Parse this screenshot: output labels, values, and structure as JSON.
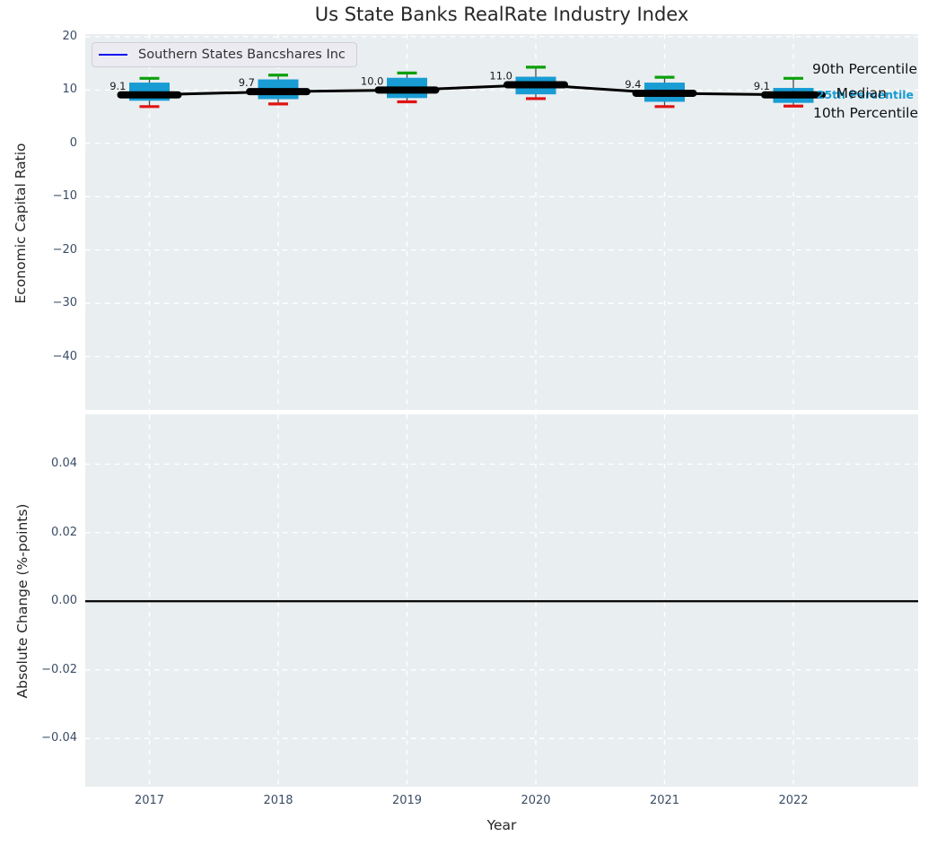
{
  "title": "Us State Banks RealRate Industry Index",
  "legend": {
    "series_label": "Southern States Bancshares Inc"
  },
  "annotations": {
    "p90": "90th Percentile",
    "median": "Median",
    "p25": "25th Percentile",
    "p10": "10th Percentile"
  },
  "axes": {
    "top": {
      "ylabel": "Economic Capital Ratio",
      "ylim": [
        -50.0,
        20.5
      ],
      "yticks": [
        {
          "label": "20",
          "value": 20
        },
        {
          "label": "10",
          "value": 10
        },
        {
          "label": "0",
          "value": 0
        },
        {
          "label": "−10",
          "value": -10
        },
        {
          "label": "−20",
          "value": -20
        },
        {
          "label": "−30",
          "value": -30
        },
        {
          "label": "−40",
          "value": -40
        }
      ]
    },
    "bottom": {
      "ylabel": "Absolute Change (%-points)",
      "ylim": [
        -0.0541,
        0.0545
      ],
      "yticks": [
        {
          "label": "0.04",
          "value": 0.04
        },
        {
          "label": "0.02",
          "value": 0.02
        },
        {
          "label": "0.00",
          "value": 0.0
        },
        {
          "label": "−0.02",
          "value": -0.02
        },
        {
          "label": "−0.04",
          "value": -0.04
        }
      ],
      "zero_line": 0.0
    },
    "xlabel": "Year",
    "xticklabels": [
      "2017",
      "2018",
      "2019",
      "2020",
      "2021",
      "2022"
    ]
  },
  "colors": {
    "box_fill": "#189cd3",
    "p90_cap": "#0aa00a",
    "p10_cap": "#e01212",
    "whisker": "#4a4a4a",
    "median_bar": "#000000",
    "company_line": "#000000",
    "company_marker": "#1414f0",
    "plot_bg": "#e9eef0",
    "grid": "#ffffff",
    "tick_text": "#3b4d66",
    "value_label_text": "#1a1a1a"
  },
  "chart_data": {
    "type": "boxplot+line",
    "x": [
      2017,
      2018,
      2019,
      2020,
      2021,
      2022
    ],
    "series": [
      {
        "name": "Southern States Bancshares Inc",
        "values": [
          9.1,
          9.7,
          10.0,
          11.0,
          9.4,
          9.1
        ]
      },
      {
        "name": "Median",
        "values": [
          9.1,
          9.7,
          10.0,
          11.0,
          9.4,
          9.1
        ]
      }
    ],
    "boxes": [
      {
        "year": "2017",
        "p90": 12.2,
        "q75": 11.4,
        "median": 9.1,
        "q25": 8.0,
        "p10": 6.9,
        "label": "9.1"
      },
      {
        "year": "2018",
        "p90": 12.8,
        "q75": 12.0,
        "median": 9.7,
        "q25": 8.3,
        "p10": 7.4,
        "label": "9.7"
      },
      {
        "year": "2019",
        "p90": 13.2,
        "q75": 12.3,
        "median": 10.0,
        "q25": 8.5,
        "p10": 7.8,
        "label": "10.0"
      },
      {
        "year": "2020",
        "p90": 14.3,
        "q75": 12.5,
        "median": 11.0,
        "q25": 9.2,
        "p10": 8.4,
        "label": "11.0"
      },
      {
        "year": "2021",
        "p90": 12.4,
        "q75": 11.4,
        "median": 9.4,
        "q25": 7.8,
        "p10": 6.9,
        "label": "9.4"
      },
      {
        "year": "2022",
        "p90": 12.2,
        "q75": 10.4,
        "median": 9.1,
        "q25": 7.6,
        "p10": 7.0,
        "label": "9.1"
      }
    ],
    "bottom_panel": {
      "series": [],
      "zero_line": 0.0
    }
  }
}
